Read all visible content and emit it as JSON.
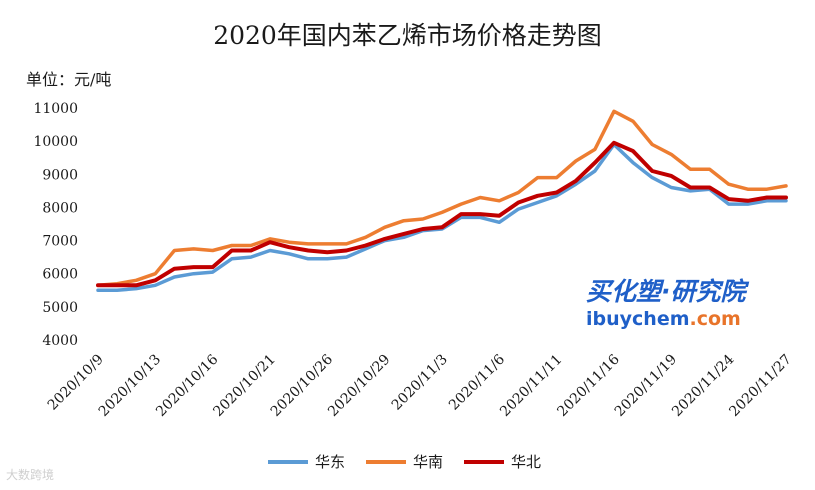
{
  "chart_data": {
    "type": "line",
    "title": "2020年国内苯乙烯市场价格走势图",
    "ylabel": "单位：元/吨",
    "ylim": [
      4000,
      11000
    ],
    "yticks": [
      4000,
      5000,
      6000,
      7000,
      8000,
      9000,
      10000,
      11000
    ],
    "x_tick_labels": [
      "2020/10/9",
      "2020/10/13",
      "2020/10/16",
      "2020/10/21",
      "2020/10/26",
      "2020/10/29",
      "2020/11/3",
      "2020/11/6",
      "2020/11/11",
      "2020/11/16",
      "2020/11/19",
      "2020/11/24",
      "2020/11/27"
    ],
    "x_tick_index": [
      0,
      3,
      6,
      9,
      12,
      15,
      18,
      21,
      24,
      27,
      30,
      33,
      36
    ],
    "grid": false,
    "legend_position": "bottom",
    "series": [
      {
        "name": "华东",
        "color": "#5b9bd5",
        "values": [
          5500,
          5500,
          5550,
          5650,
          5900,
          6000,
          6050,
          6450,
          6500,
          6700,
          6600,
          6450,
          6450,
          6500,
          6750,
          7000,
          7100,
          7300,
          7350,
          7700,
          7700,
          7550,
          7950,
          8150,
          8350,
          8700,
          9100,
          9900,
          9350,
          8900,
          8600,
          8500,
          8550,
          8100,
          8100,
          8200,
          8200
        ]
      },
      {
        "name": "华南",
        "color": "#ed7d31",
        "values": [
          5650,
          5700,
          5800,
          6000,
          6700,
          6750,
          6700,
          6850,
          6850,
          7050,
          6950,
          6900,
          6900,
          6900,
          7100,
          7400,
          7600,
          7650,
          7850,
          8100,
          8300,
          8200,
          8450,
          8900,
          8900,
          9400,
          9750,
          10900,
          10600,
          9900,
          9600,
          9150,
          9150,
          8700,
          8550,
          8550,
          8650
        ]
      },
      {
        "name": "华北",
        "color": "#c00000",
        "values": [
          5650,
          5650,
          5650,
          5800,
          6150,
          6200,
          6200,
          6700,
          6700,
          6950,
          6800,
          6700,
          6650,
          6700,
          6850,
          7050,
          7200,
          7350,
          7400,
          7800,
          7800,
          7750,
          8150,
          8350,
          8450,
          8800,
          9350,
          9950,
          9700,
          9100,
          8950,
          8600,
          8600,
          8250,
          8200,
          8300,
          8300
        ]
      }
    ]
  },
  "watermark": {
    "brand_zh": "买化塑·研究院",
    "brand_en_main": "ibuychem",
    "brand_en_suffix": ".com",
    "corner_text": "大数跨境"
  }
}
